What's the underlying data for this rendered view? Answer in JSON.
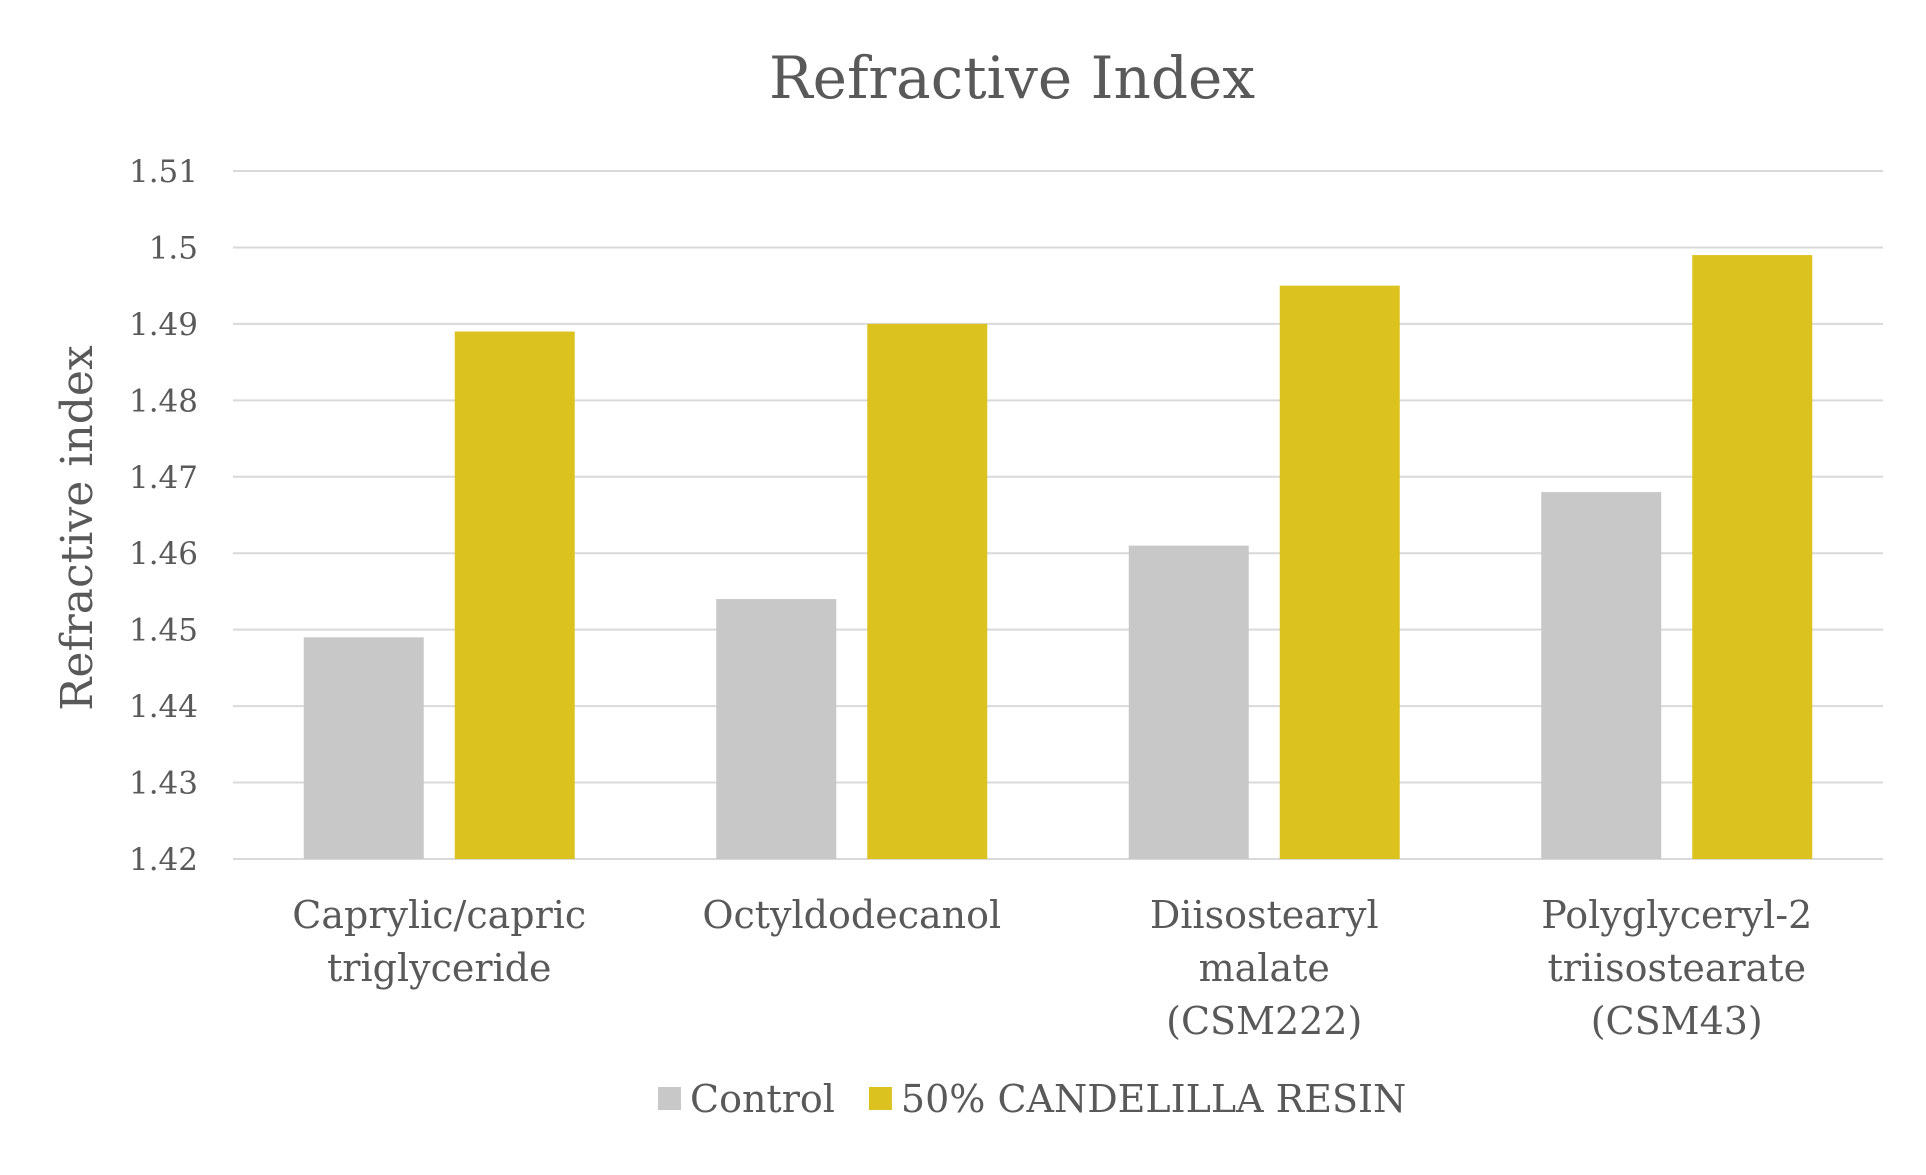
{
  "chart_data": {
    "type": "bar",
    "title": "Refractive Index",
    "xlabel": "",
    "ylabel": "Refractive index",
    "ylim": [
      1.42,
      1.51
    ],
    "yticks": [
      "1.42",
      "1.43",
      "1.44",
      "1.45",
      "1.46",
      "1.47",
      "1.48",
      "1.49",
      "1.5",
      "1.51"
    ],
    "grid": true,
    "legend_position": "bottom",
    "categories": [
      [
        "Caprylic/capric",
        "triglyceride"
      ],
      [
        "Octyldodecanol"
      ],
      [
        "Diisostearyl",
        "malate",
        "(CSM222)"
      ],
      [
        "Polyglyceryl-2",
        "triisostearate",
        "(CSM43)"
      ]
    ],
    "series": [
      {
        "name": "Control",
        "color": "#c8c8c8",
        "values": [
          1.449,
          1.454,
          1.461,
          1.468
        ]
      },
      {
        "name": "50% CANDELILLA RESIN",
        "color": "#dbc21f",
        "values": [
          1.489,
          1.49,
          1.495,
          1.499
        ]
      }
    ]
  }
}
